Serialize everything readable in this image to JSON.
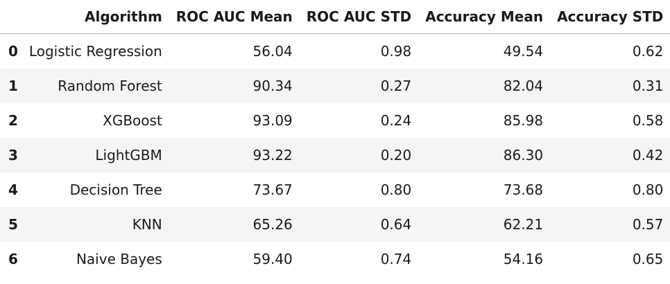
{
  "table": {
    "index_header": "",
    "columns": [
      "Algorithm",
      "ROC AUC Mean",
      "ROC AUC STD",
      "Accuracy Mean",
      "Accuracy STD"
    ],
    "rows": [
      {
        "index": "0",
        "algorithm": "Logistic Regression",
        "roc_auc_mean": "56.04",
        "roc_auc_std": "0.98",
        "accuracy_mean": "49.54",
        "accuracy_std": "0.62"
      },
      {
        "index": "1",
        "algorithm": "Random Forest",
        "roc_auc_mean": "90.34",
        "roc_auc_std": "0.27",
        "accuracy_mean": "82.04",
        "accuracy_std": "0.31"
      },
      {
        "index": "2",
        "algorithm": "XGBoost",
        "roc_auc_mean": "93.09",
        "roc_auc_std": "0.24",
        "accuracy_mean": "85.98",
        "accuracy_std": "0.58"
      },
      {
        "index": "3",
        "algorithm": "LightGBM",
        "roc_auc_mean": "93.22",
        "roc_auc_std": "0.20",
        "accuracy_mean": "86.30",
        "accuracy_std": "0.42"
      },
      {
        "index": "4",
        "algorithm": "Decision Tree",
        "roc_auc_mean": "73.67",
        "roc_auc_std": "0.80",
        "accuracy_mean": "73.68",
        "accuracy_std": "0.80"
      },
      {
        "index": "5",
        "algorithm": "KNN",
        "roc_auc_mean": "65.26",
        "roc_auc_std": "0.64",
        "accuracy_mean": "62.21",
        "accuracy_std": "0.57"
      },
      {
        "index": "6",
        "algorithm": "Naive Bayes",
        "roc_auc_mean": "59.40",
        "roc_auc_std": "0.74",
        "accuracy_mean": "54.16",
        "accuracy_std": "0.65"
      }
    ]
  },
  "colors": {
    "row_stripe": "#f5f5f5",
    "header_rule": "#bdbdbd",
    "text": "#1a1a1a"
  }
}
